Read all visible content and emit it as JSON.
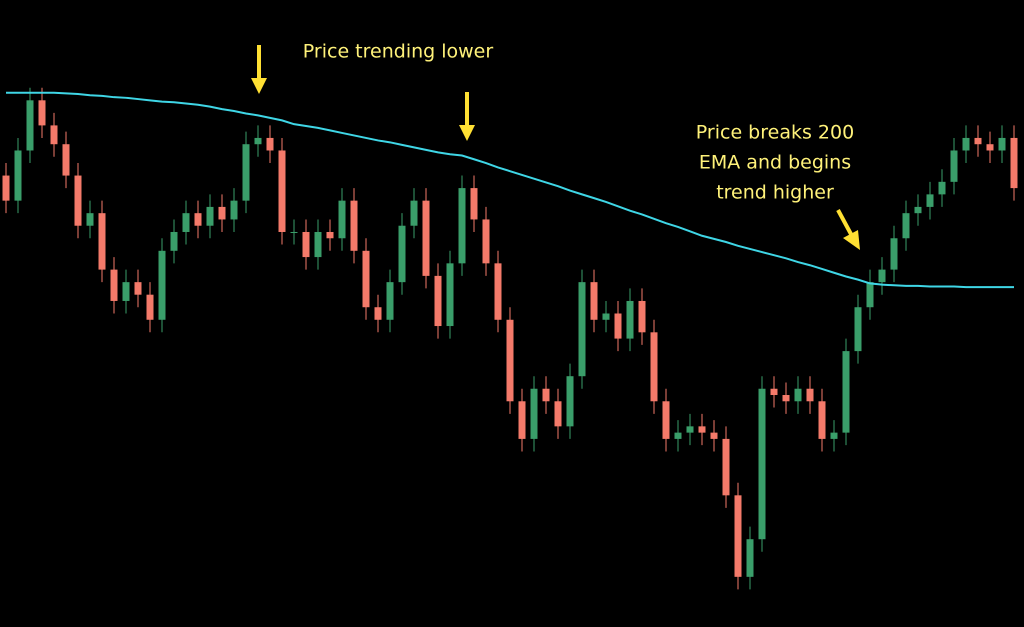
{
  "chart_data": {
    "type": "candlestick",
    "annotations": [
      {
        "lines": [
          "Price trending lower"
        ]
      },
      {
        "lines": [
          "Price breaks 200",
          "EMA and begins",
          "trend higher"
        ]
      }
    ],
    "open": [
      72,
      68,
      76,
      84,
      80,
      77,
      72,
      64,
      66,
      57,
      52,
      55,
      53,
      49,
      60,
      63,
      66,
      64,
      67,
      65,
      68,
      77,
      78,
      76,
      63,
      63,
      59,
      63,
      62,
      68,
      60,
      51,
      49,
      55,
      64,
      68,
      56,
      48,
      58,
      70,
      65,
      58,
      49,
      36,
      30,
      38,
      36,
      32,
      40,
      55,
      49,
      50,
      46,
      52,
      47,
      36,
      30,
      31,
      32,
      31,
      30,
      21,
      8,
      14,
      38,
      37,
      36,
      38,
      36,
      30,
      31,
      44,
      51,
      55,
      57,
      62,
      66,
      67,
      69,
      71,
      76,
      78,
      77,
      76,
      78
    ],
    "high": [
      74,
      78,
      86,
      86,
      82,
      79,
      74,
      68,
      68,
      59,
      57,
      57,
      55,
      62,
      65,
      68,
      68,
      69,
      69,
      70,
      79,
      80,
      80,
      78,
      65,
      65,
      65,
      65,
      70,
      70,
      62,
      53,
      57,
      66,
      70,
      70,
      58,
      60,
      72,
      72,
      67,
      60,
      51,
      38,
      40,
      40,
      38,
      42,
      57,
      57,
      52,
      52,
      54,
      54,
      49,
      38,
      33,
      34,
      34,
      33,
      32,
      23,
      16,
      40,
      40,
      39,
      40,
      40,
      38,
      33,
      46,
      53,
      57,
      59,
      64,
      68,
      69,
      71,
      73,
      78,
      80,
      80,
      79,
      80,
      80
    ],
    "low": [
      66,
      66,
      74,
      78,
      75,
      70,
      62,
      62,
      55,
      50,
      50,
      51,
      47,
      47,
      58,
      61,
      62,
      62,
      63,
      63,
      66,
      75,
      74,
      61,
      61,
      57,
      57,
      60,
      60,
      58,
      49,
      47,
      47,
      53,
      62,
      54,
      46,
      46,
      56,
      63,
      56,
      47,
      34,
      28,
      28,
      34,
      30,
      30,
      38,
      47,
      47,
      44,
      44,
      45,
      34,
      28,
      28,
      29,
      29,
      28,
      19,
      6,
      6,
      12,
      35,
      34,
      34,
      34,
      28,
      28,
      29,
      42,
      49,
      53,
      55,
      60,
      64,
      65,
      67,
      69,
      74,
      75,
      74,
      74,
      68
    ],
    "close": [
      68,
      76,
      84,
      80,
      77,
      72,
      64,
      66,
      57,
      52,
      55,
      53,
      49,
      60,
      63,
      66,
      64,
      67,
      65,
      68,
      77,
      78,
      76,
      63,
      63,
      59,
      63,
      62,
      68,
      60,
      51,
      49,
      55,
      64,
      68,
      56,
      48,
      58,
      70,
      65,
      58,
      49,
      36,
      30,
      38,
      36,
      32,
      40,
      55,
      49,
      50,
      46,
      52,
      47,
      36,
      30,
      31,
      32,
      31,
      30,
      21,
      8,
      14,
      38,
      37,
      36,
      38,
      36,
      30,
      31,
      44,
      51,
      55,
      57,
      62,
      66,
      67,
      69,
      71,
      76,
      78,
      77,
      76,
      78,
      70
    ],
    "ema": [
      85.2,
      85.2,
      85.2,
      85.2,
      85.2,
      85.1,
      85.0,
      84.8,
      84.7,
      84.5,
      84.4,
      84.2,
      84.0,
      83.8,
      83.7,
      83.5,
      83.3,
      83.0,
      82.6,
      82.3,
      81.9,
      81.6,
      81.2,
      80.8,
      80.2,
      79.9,
      79.6,
      79.2,
      78.8,
      78.4,
      78.0,
      77.6,
      77.3,
      76.9,
      76.5,
      76.1,
      75.7,
      75.4,
      75.2,
      74.6,
      74.0,
      73.3,
      72.7,
      72.1,
      71.5,
      70.9,
      70.3,
      69.6,
      69.0,
      68.4,
      67.8,
      67.1,
      66.4,
      65.8,
      65.1,
      64.4,
      63.8,
      63.1,
      62.4,
      61.9,
      61.4,
      60.8,
      60.3,
      59.8,
      59.3,
      58.8,
      58.2,
      57.7,
      57.1,
      56.5,
      55.9,
      55.4,
      54.8,
      54.6,
      54.5,
      54.4,
      54.4,
      54.3,
      54.3,
      54.3,
      54.2,
      54.2,
      54.2,
      54.2,
      54.2
    ],
    "up_color": "#3a9e6a",
    "down_color": "#f47a6a",
    "ema_color": "#3fd6e6",
    "ylim": [
      0,
      100
    ]
  }
}
